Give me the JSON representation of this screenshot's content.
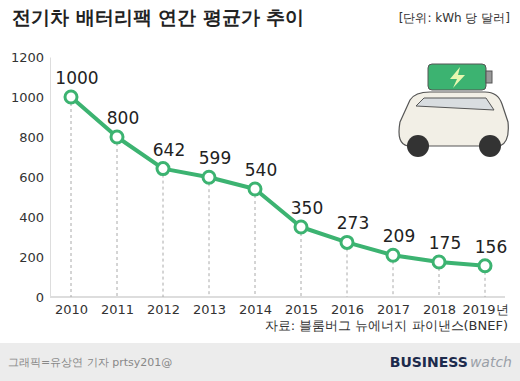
{
  "chart_data": {
    "type": "line",
    "title": "전기차 배터리팩 연간 평균가 추이",
    "subtitle": "[단위: kWh 당 달러]",
    "source": "자료: 블룸버그 뉴에너지 파이낸스(BNEF)",
    "annotations": [
      "그래픽=유상연 기자 prtsy201@",
      "BUSINESS",
      "watch"
    ],
    "categories": [
      "2010",
      "2011",
      "2012",
      "2013",
      "2014",
      "2015",
      "2016",
      "2017",
      "2018",
      "2019년"
    ],
    "values": [
      1000,
      800,
      642,
      599,
      540,
      350,
      273,
      209,
      175,
      156
    ],
    "color": "#3cb371",
    "marker": "circle",
    "ylim": [
      0,
      1200
    ],
    "yticks": [
      0,
      200,
      400,
      600,
      800,
      1000,
      1200
    ],
    "grid": false,
    "data_labels": true
  }
}
